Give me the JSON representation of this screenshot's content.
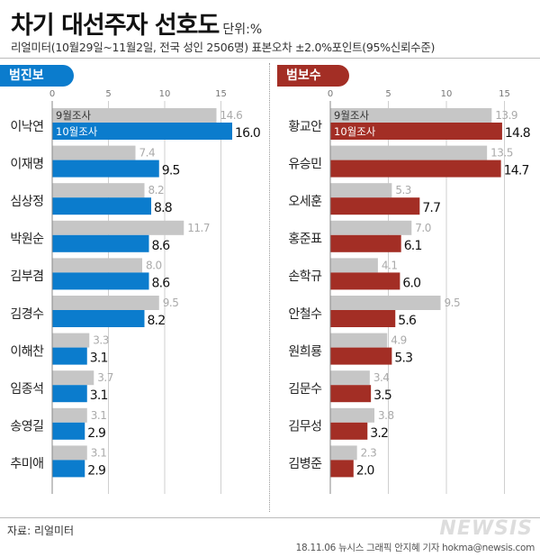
{
  "header": {
    "title": "차기 대선주자 선호도",
    "unit": "단위:%",
    "subtitle": "리얼미터(10월29일~11월2일, 전국 성인 2506명) 표본오차 ±2.0%포인트(95%신뢰수준)"
  },
  "colors": {
    "left_accent": "#0b7ccd",
    "right_accent": "#a32e25",
    "prev_bar": "#c6c6c6"
  },
  "chart_data": [
    {
      "type": "bar",
      "orientation": "horizontal",
      "group_label": "범진보",
      "xlim": [
        0,
        17
      ],
      "xticks": [
        0,
        5,
        10,
        15
      ],
      "categories": [
        "이낙연",
        "이재명",
        "심상정",
        "박원순",
        "김부겸",
        "김경수",
        "이해찬",
        "임종석",
        "송영길",
        "추미애"
      ],
      "series": [
        {
          "name": "9월조사",
          "values": [
            14.6,
            7.4,
            8.2,
            11.7,
            8.0,
            9.5,
            3.3,
            3.7,
            3.1,
            3.1
          ],
          "labels": [
            "14.6",
            "7.4",
            "8.2",
            "11.7",
            "8.0",
            "9.5",
            "3.3",
            "3.7",
            "3.1",
            "3.1"
          ]
        },
        {
          "name": "10월조사",
          "values": [
            16.0,
            9.5,
            8.8,
            8.6,
            8.6,
            8.2,
            3.1,
            3.1,
            2.9,
            2.9
          ],
          "labels": [
            "16.0",
            "9.5",
            "8.8",
            "8.6",
            "8.6",
            "8.2",
            "3.1",
            "3.1",
            "2.9",
            "2.9"
          ]
        }
      ]
    },
    {
      "type": "bar",
      "orientation": "horizontal",
      "group_label": "범보수",
      "xlim": [
        0,
        17
      ],
      "xticks": [
        0,
        5,
        10,
        15
      ],
      "categories": [
        "황교안",
        "유승민",
        "오세훈",
        "홍준표",
        "손학규",
        "안철수",
        "원희룡",
        "김문수",
        "김무성",
        "김병준"
      ],
      "series": [
        {
          "name": "9월조사",
          "values": [
            13.9,
            13.5,
            5.3,
            7.0,
            4.1,
            9.5,
            4.9,
            3.4,
            3.8,
            2.3
          ],
          "labels": [
            "13.9",
            "13.5",
            "5.3",
            "7.0",
            "4.1",
            "9.5",
            "4.9",
            "3.4",
            "3.8",
            "2.3"
          ]
        },
        {
          "name": "10월조사",
          "values": [
            14.8,
            14.7,
            7.7,
            6.1,
            6.0,
            5.6,
            5.3,
            3.5,
            3.2,
            2.0
          ],
          "labels": [
            "14.8",
            "14.7",
            "7.7",
            "6.1",
            "6.0",
            "5.6",
            "5.3",
            "3.5",
            "3.2",
            "2.0"
          ]
        }
      ]
    }
  ],
  "footer": {
    "source": "자료: 리얼미터",
    "credit": "18.11.06 뉴시스 그래픽 안지혜 기자 hokma@newsis.com",
    "watermark": "NEWSIS"
  }
}
